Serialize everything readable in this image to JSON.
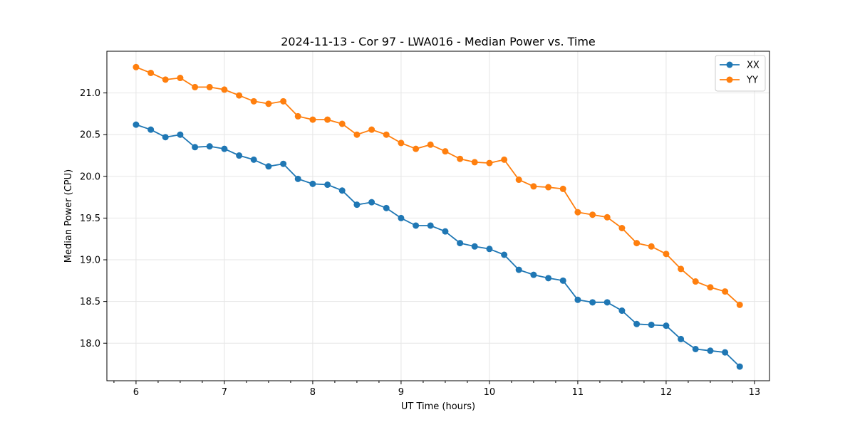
{
  "chart_data": {
    "type": "line",
    "title": "2024-11-13 - Cor 97 - LWA016 - Median Power vs. Time",
    "xlabel": "UT Time (hours)",
    "ylabel": "Median Power (CPU)",
    "xlim": [
      5.67,
      13.17
    ],
    "ylim": [
      17.55,
      21.5
    ],
    "grid": true,
    "legend_position": "top-right",
    "x_ticks": [
      {
        "value": 6,
        "label": "6"
      },
      {
        "value": 7,
        "label": "7"
      },
      {
        "value": 8,
        "label": "8"
      },
      {
        "value": 9,
        "label": "9"
      },
      {
        "value": 10,
        "label": "10"
      },
      {
        "value": 11,
        "label": "11"
      },
      {
        "value": 12,
        "label": "12"
      },
      {
        "value": 13,
        "label": "13"
      }
    ],
    "x_minor_ticks": [
      5.75,
      6.25,
      6.5,
      6.75,
      7.25,
      7.5,
      7.75,
      8.25,
      8.5,
      8.75,
      9.25,
      9.5,
      9.75,
      10.25,
      10.5,
      10.75,
      11.25,
      11.5,
      11.75,
      12.25,
      12.5,
      12.75,
      13.25
    ],
    "y_ticks": [
      {
        "value": 18.0,
        "label": "18.0"
      },
      {
        "value": 18.5,
        "label": "18.5"
      },
      {
        "value": 19.0,
        "label": "19.0"
      },
      {
        "value": 19.5,
        "label": "19.5"
      },
      {
        "value": 20.0,
        "label": "20.0"
      },
      {
        "value": 20.5,
        "label": "20.5"
      },
      {
        "value": 21.0,
        "label": "21.0"
      }
    ],
    "x": [
      6.0,
      6.167,
      6.333,
      6.5,
      6.667,
      6.833,
      7.0,
      7.167,
      7.333,
      7.5,
      7.667,
      7.833,
      8.0,
      8.167,
      8.333,
      8.5,
      8.667,
      8.833,
      9.0,
      9.167,
      9.333,
      9.5,
      9.667,
      9.833,
      10.0,
      10.167,
      10.333,
      10.5,
      10.667,
      10.833,
      11.0,
      11.167,
      11.333,
      11.5,
      11.667,
      11.833,
      12.0,
      12.167,
      12.333,
      12.5,
      12.667,
      12.833
    ],
    "series": [
      {
        "name": "XX",
        "color": "#1f77b4",
        "values": [
          20.62,
          20.56,
          20.47,
          20.5,
          20.35,
          20.36,
          20.33,
          20.25,
          20.2,
          20.12,
          20.15,
          19.97,
          19.91,
          19.9,
          19.83,
          19.66,
          19.69,
          19.62,
          19.5,
          19.41,
          19.41,
          19.34,
          19.2,
          19.16,
          19.13,
          19.06,
          18.88,
          18.82,
          18.78,
          18.75,
          18.52,
          18.49,
          18.49,
          18.39,
          18.23,
          18.22,
          18.21,
          18.05,
          17.93,
          17.91,
          17.89,
          17.72
        ]
      },
      {
        "name": "YY",
        "color": "#ff7f0e",
        "values": [
          21.31,
          21.24,
          21.16,
          21.18,
          21.07,
          21.07,
          21.04,
          20.97,
          20.9,
          20.87,
          20.9,
          20.72,
          20.68,
          20.68,
          20.63,
          20.5,
          20.56,
          20.5,
          20.4,
          20.33,
          20.38,
          20.3,
          20.21,
          20.17,
          20.16,
          20.2,
          19.96,
          19.88,
          19.87,
          19.85,
          19.57,
          19.54,
          19.51,
          19.38,
          19.2,
          19.16,
          19.07,
          18.89,
          18.74,
          18.67,
          18.62,
          18.46
        ]
      }
    ]
  }
}
